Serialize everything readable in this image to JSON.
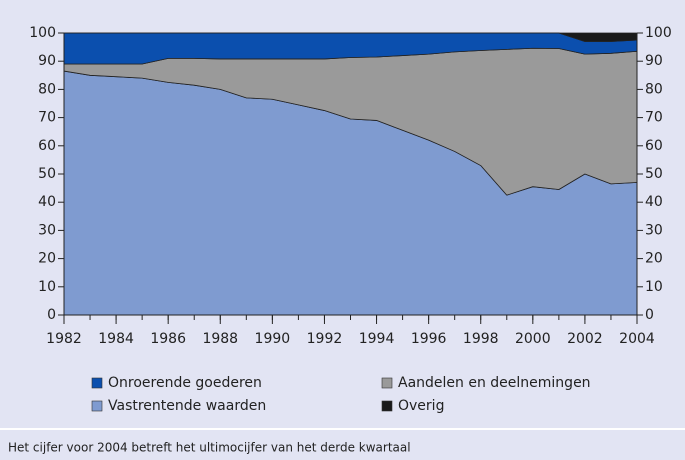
{
  "chart_data": {
    "type": "stacked_area",
    "x": [
      1982,
      1983,
      1984,
      1985,
      1986,
      1987,
      1988,
      1989,
      1990,
      1991,
      1992,
      1993,
      1994,
      1995,
      1996,
      1997,
      1998,
      1999,
      2000,
      2001,
      2002,
      2003,
      2004
    ],
    "series": [
      {
        "name": "Vastrentende waarden",
        "color": "#7f9bd0",
        "values": [
          86.5,
          85,
          84.5,
          84,
          82.5,
          81.5,
          80,
          77,
          76.5,
          74.5,
          72.5,
          69.5,
          69,
          65.5,
          62,
          58,
          53,
          42.5,
          45.5,
          44.5,
          50,
          46.5,
          47
        ]
      },
      {
        "name": "Aandelen en deelnemingen",
        "color": "#9a9a9a",
        "values": [
          2.5,
          4,
          4.5,
          5,
          8.5,
          9.5,
          10.8,
          13.8,
          14.3,
          16.3,
          18.3,
          21.8,
          22.5,
          26.5,
          30.5,
          35.3,
          40.8,
          51.7,
          49.1,
          50,
          42.5,
          46.3,
          46.5
        ]
      },
      {
        "name": "Onroerende goederen",
        "color": "#0b4fae",
        "values": [
          11,
          11,
          11,
          11,
          9,
          9,
          9.2,
          9.2,
          9.2,
          9.2,
          9.2,
          8.7,
          8.5,
          8,
          7.5,
          6.7,
          6.2,
          5.8,
          5.4,
          5.5,
          4.5,
          4.2,
          4
        ]
      },
      {
        "name": "Overig",
        "color": "#1a1a1a",
        "values": [
          0,
          0,
          0,
          0,
          0,
          0,
          0,
          0,
          0,
          0,
          0,
          0,
          0,
          0,
          0,
          0,
          0,
          0,
          0,
          0,
          3,
          3,
          2.5
        ]
      }
    ],
    "xlim": [
      1982,
      2004
    ],
    "xticks": [
      1982,
      1984,
      1986,
      1988,
      1990,
      1992,
      1994,
      1996,
      1998,
      2000,
      2002,
      2004
    ],
    "ylim": [
      0,
      100
    ],
    "yticks": [
      0,
      10,
      20,
      30,
      40,
      50,
      60,
      70,
      80,
      90,
      100
    ],
    "note": "Het cijfer voor 2004 betreft het ultimocijfer van het derde kwartaal"
  }
}
